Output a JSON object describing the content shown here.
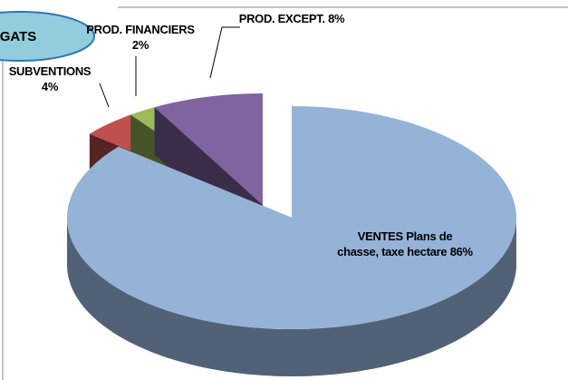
{
  "chart_data": {
    "type": "pie",
    "label_box": "GATS",
    "categories": [
      "VENTES Plans de chasse, taxe hectare",
      "SUBVENTIONS",
      "PROD. FINANCIERS",
      "PROD. EXCEPT."
    ],
    "values": [
      86,
      4,
      2,
      8
    ],
    "value_labels": [
      "86%",
      "4%",
      "2%",
      "8%"
    ],
    "colors": [
      "#95b3d7",
      "#c0504d",
      "#9bbb59",
      "#8064a2"
    ]
  }
}
